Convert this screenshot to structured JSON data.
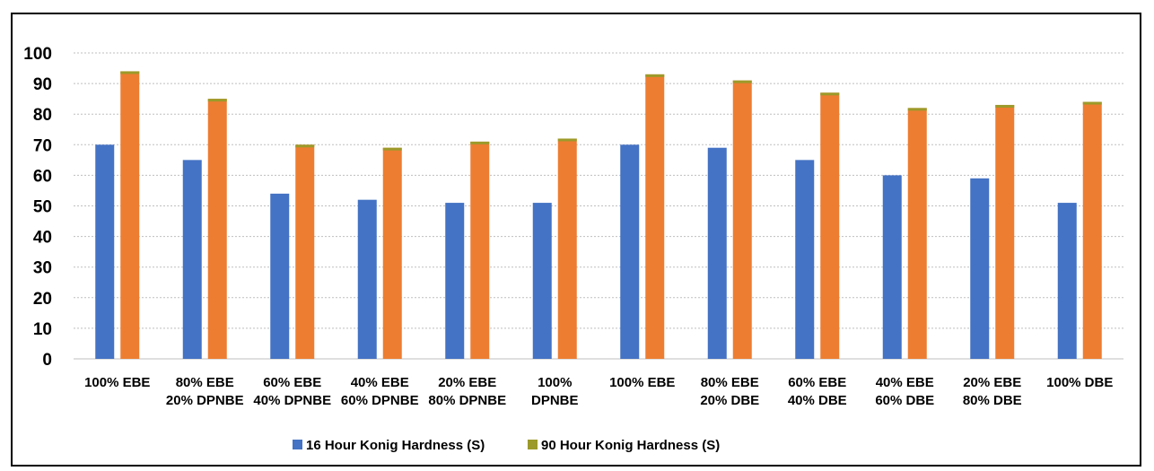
{
  "chart_data": {
    "type": "bar",
    "title": "",
    "xlabel": "",
    "ylabel": "",
    "ylim": [
      0,
      100
    ],
    "yticks": [
      0,
      10,
      20,
      30,
      40,
      50,
      60,
      70,
      80,
      90,
      100
    ],
    "grid": "horizontal-dotted",
    "legend_position": "bottom",
    "categories": [
      [
        "100% EBE"
      ],
      [
        "80% EBE",
        "20% DPNBE"
      ],
      [
        "60% EBE",
        "40% DPNBE"
      ],
      [
        "40% EBE",
        "60% DPNBE"
      ],
      [
        "20% EBE",
        "80% DPNBE"
      ],
      [
        "100%",
        "DPNBE"
      ],
      [
        "100% EBE"
      ],
      [
        "80% EBE",
        "20% DBE"
      ],
      [
        "60% EBE",
        "40% DBE"
      ],
      [
        "40% EBE",
        "60% DBE"
      ],
      [
        "20% EBE",
        "80% DBE"
      ],
      [
        "100% DBE"
      ]
    ],
    "series": [
      {
        "name": "16 Hour Konig Hardness (S)",
        "color": "#4472C4",
        "values": [
          70,
          65,
          54,
          52,
          51,
          51,
          70,
          69,
          65,
          60,
          59,
          51
        ]
      },
      {
        "name": "90 Hour Konig Hardness (S)",
        "color": "#ED7D31",
        "legend_color": "#9C9A2A",
        "values": [
          94,
          85,
          70,
          69,
          71,
          72,
          93,
          91,
          87,
          82,
          83,
          84
        ]
      }
    ]
  }
}
